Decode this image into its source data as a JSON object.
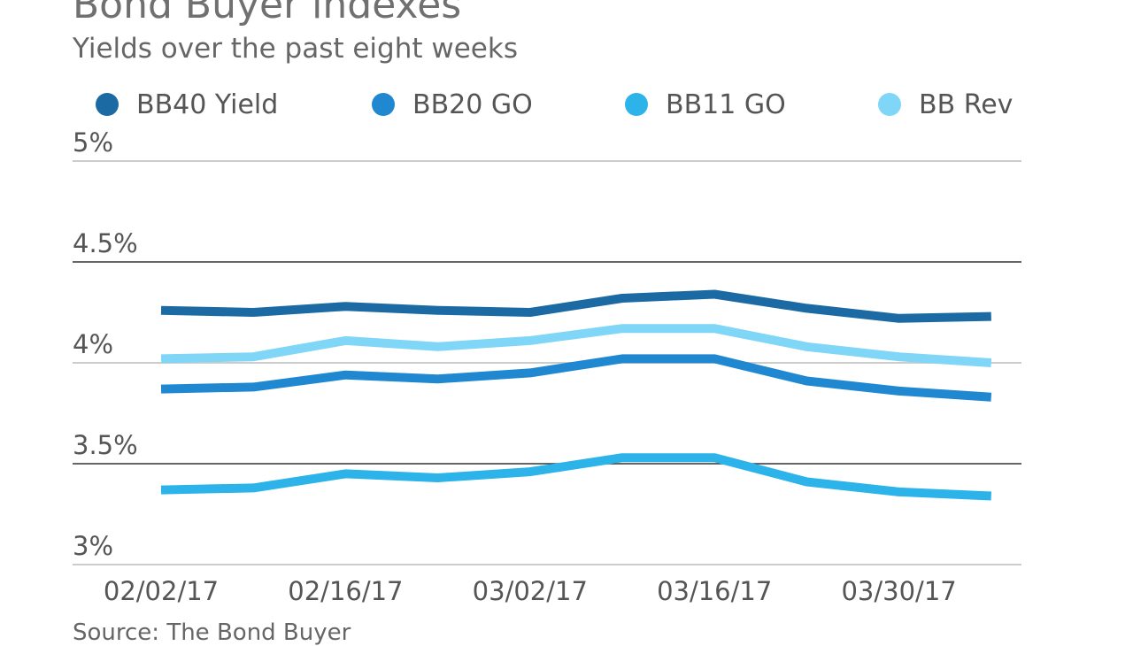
{
  "chart_data": {
    "type": "line",
    "title": "Bond Buyer indexes",
    "subtitle": "Yields over the past eight weeks",
    "source": "Source: The Bond Buyer",
    "x": [
      "02/02/17",
      "02/09/17",
      "02/16/17",
      "02/23/17",
      "03/02/17",
      "03/09/17",
      "03/16/17",
      "03/23/17",
      "03/30/17",
      "04/06/17"
    ],
    "x_tick_labels": [
      "02/02/17",
      "02/16/17",
      "03/02/17",
      "03/16/17",
      "03/30/17"
    ],
    "y_tick_labels": [
      "5%",
      "4.5%",
      "4%",
      "3.5%",
      "3%"
    ],
    "y_ticks": [
      5,
      4.5,
      4,
      3.5,
      3
    ],
    "ylim": [
      3,
      5
    ],
    "grid": true,
    "legend_position": "top",
    "series": [
      {
        "name": "BB40 Yield",
        "color": "#1b6aa3",
        "values": [
          4.26,
          4.25,
          4.28,
          4.26,
          4.25,
          4.32,
          4.34,
          4.27,
          4.22,
          4.23
        ]
      },
      {
        "name": "BB20 GO",
        "color": "#2088d1",
        "values": [
          3.87,
          3.88,
          3.94,
          3.92,
          3.95,
          4.02,
          4.02,
          3.91,
          3.86,
          3.83
        ]
      },
      {
        "name": "BB11 GO",
        "color": "#2bb3ea",
        "values": [
          3.37,
          3.38,
          3.45,
          3.43,
          3.46,
          3.53,
          3.53,
          3.41,
          3.36,
          3.34
        ]
      },
      {
        "name": "BB Rev",
        "color": "#80d6f7",
        "values": [
          4.02,
          4.03,
          4.11,
          4.08,
          4.11,
          4.17,
          4.17,
          4.08,
          4.03,
          4.0
        ]
      }
    ]
  }
}
